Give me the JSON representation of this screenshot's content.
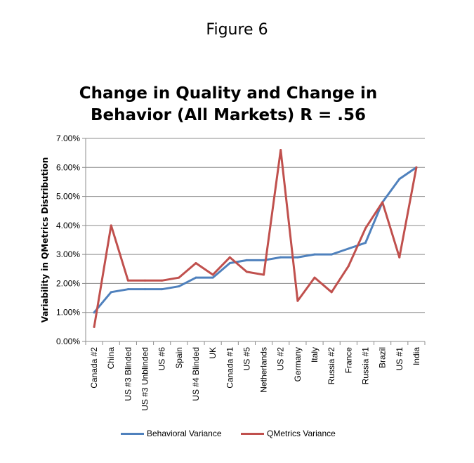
{
  "figure_label": "Figure 6",
  "chart_data": {
    "type": "line",
    "title": "Change in Quality and Change in Behavior (All Markets) R = .56",
    "title_lines": [
      "Change in Quality and Change in",
      "Behavior (All Markets) R = .56"
    ],
    "xlabel": "",
    "ylabel": "Variability in  QMetrics Distribution",
    "ylim": [
      0,
      0.07
    ],
    "yticks": [
      "0.00%",
      "1.00%",
      "2.00%",
      "3.00%",
      "4.00%",
      "5.00%",
      "6.00%",
      "7.00%"
    ],
    "grid": true,
    "legend_position": "bottom",
    "categories": [
      "Canada #2",
      "China",
      "US #3 Blinded",
      "US #3 Unblinded",
      "US #6",
      "Spain",
      "US #4 Blinded",
      "UK",
      "Canada #1",
      "US #5",
      "Netherlands",
      "US #2",
      "Germany",
      "Italy",
      "Russia #2",
      "France",
      "Russia #1",
      "Brazil",
      "US #1",
      "India"
    ],
    "series": [
      {
        "name": "Behavioral Variance",
        "color": "#4f81bd",
        "values": [
          0.01,
          0.017,
          0.018,
          0.018,
          0.018,
          0.019,
          0.022,
          0.022,
          0.027,
          0.028,
          0.028,
          0.029,
          0.029,
          0.03,
          0.03,
          0.032,
          0.034,
          0.048,
          0.056,
          0.06
        ]
      },
      {
        "name": "QMetrics Variance",
        "color": "#c0504d",
        "values": [
          0.005,
          0.04,
          0.021,
          0.021,
          0.021,
          0.022,
          0.027,
          0.023,
          0.029,
          0.024,
          0.023,
          0.066,
          0.014,
          0.022,
          0.017,
          0.026,
          0.039,
          0.048,
          0.029,
          0.06
        ]
      }
    ]
  }
}
